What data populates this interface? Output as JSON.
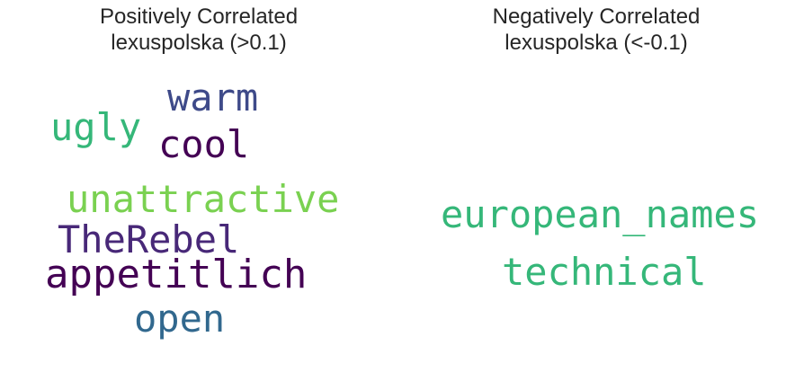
{
  "panels": [
    {
      "title_line1": "Positively Correlated",
      "title_line2": "lexuspolska (>0.1)",
      "words": [
        {
          "text": "warm",
          "color": "#3e4a89"
        },
        {
          "text": "ugly",
          "color": "#35b779"
        },
        {
          "text": "cool",
          "color": "#440154"
        },
        {
          "text": "unattractive",
          "color": "#7ad151"
        },
        {
          "text": "TheRebel",
          "color": "#482878"
        },
        {
          "text": "appetitlich",
          "color": "#440154"
        },
        {
          "text": "open",
          "color": "#31688e"
        }
      ]
    },
    {
      "title_line1": "Negatively Correlated",
      "title_line2": "lexuspolska (<-0.1)",
      "words": [
        {
          "text": "european_names",
          "color": "#35b779"
        },
        {
          "text": "technical",
          "color": "#35b779"
        }
      ]
    }
  ]
}
